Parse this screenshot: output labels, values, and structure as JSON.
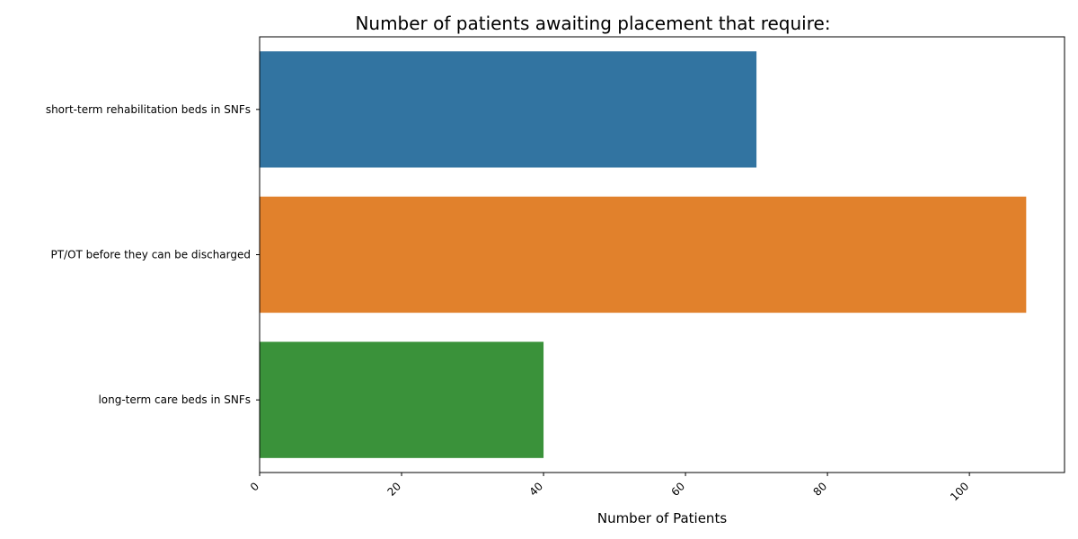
{
  "chart_data": {
    "type": "bar",
    "orientation": "horizontal",
    "title": "Number of patients awaiting placement that require:",
    "xlabel": "Number of Patients",
    "ylabel": "",
    "categories": [
      "short-term rehabilitation beds in SNFs",
      "PT/OT before they can be discharged",
      "long-term care beds in SNFs"
    ],
    "values": [
      70,
      108,
      40
    ],
    "colors": [
      "#3274a1",
      "#e1812c",
      "#3a923a"
    ],
    "xlim": [
      0,
      113.4
    ],
    "xticks": [
      0,
      20,
      40,
      60,
      80,
      100
    ],
    "xtick_rotation": -45,
    "grid": false,
    "legend": "none"
  }
}
